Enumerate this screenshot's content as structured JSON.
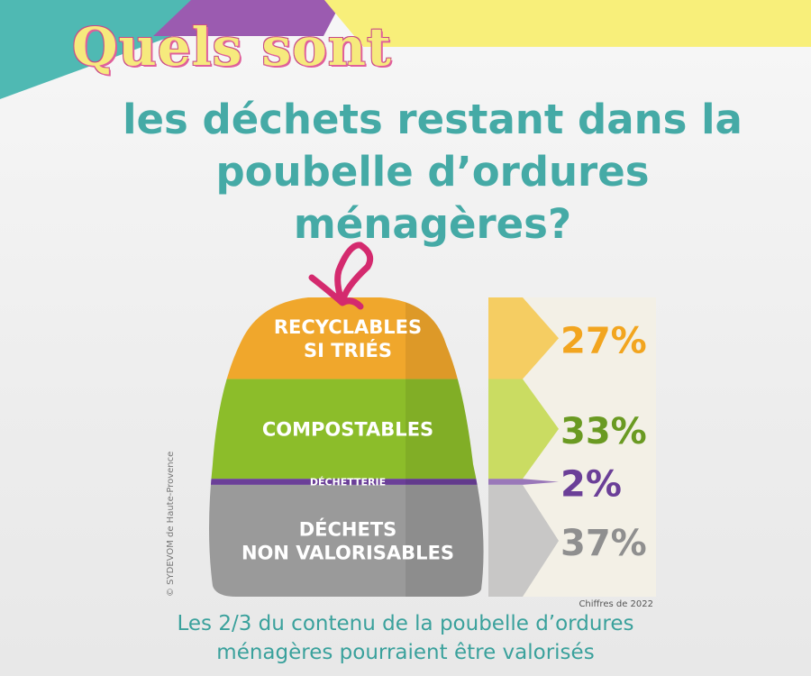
{
  "header": {
    "title": "Quels sont",
    "subtitle_lines": [
      "les déchets restant dans la",
      "poubelle d’ordures",
      "ménagères?"
    ]
  },
  "chart_data": {
    "type": "bar",
    "categories": [
      "RECYCLABLES SI TRIÉS",
      "COMPOSTABLES",
      "DÉCHETTERIE",
      "DÉCHETS NON VALORISABLES"
    ],
    "category_lines": [
      [
        "RECYCLABLES",
        "SI TRIÉS"
      ],
      [
        "COMPOSTABLES"
      ],
      [
        "DÉCHETTERIE"
      ],
      [
        "DÉCHETS",
        "NON VALORISABLES"
      ]
    ],
    "values": [
      27,
      33,
      2,
      37
    ],
    "value_labels": [
      "27%",
      "33%",
      "2%",
      "37%"
    ],
    "colors": [
      "#f0a72c",
      "#8cbd2a",
      "#6b3f98",
      "#9a9a9a"
    ],
    "arrow_colors": [
      "#f4c74a",
      "#c2d84a",
      "#8a63b0",
      "#bfbfbf"
    ],
    "label_colors": [
      "#f2a51f",
      "#6a9a22",
      "#6b3f98",
      "#8f8f8f"
    ],
    "credit": "© SYDEVOM de Haute-Provence",
    "source_note": "Chiffres de 2022"
  },
  "footer": {
    "caption_lines": [
      "Les 2/3 du contenu de la poubelle d’ordures",
      "ménagères pourraient être valorisés"
    ]
  }
}
